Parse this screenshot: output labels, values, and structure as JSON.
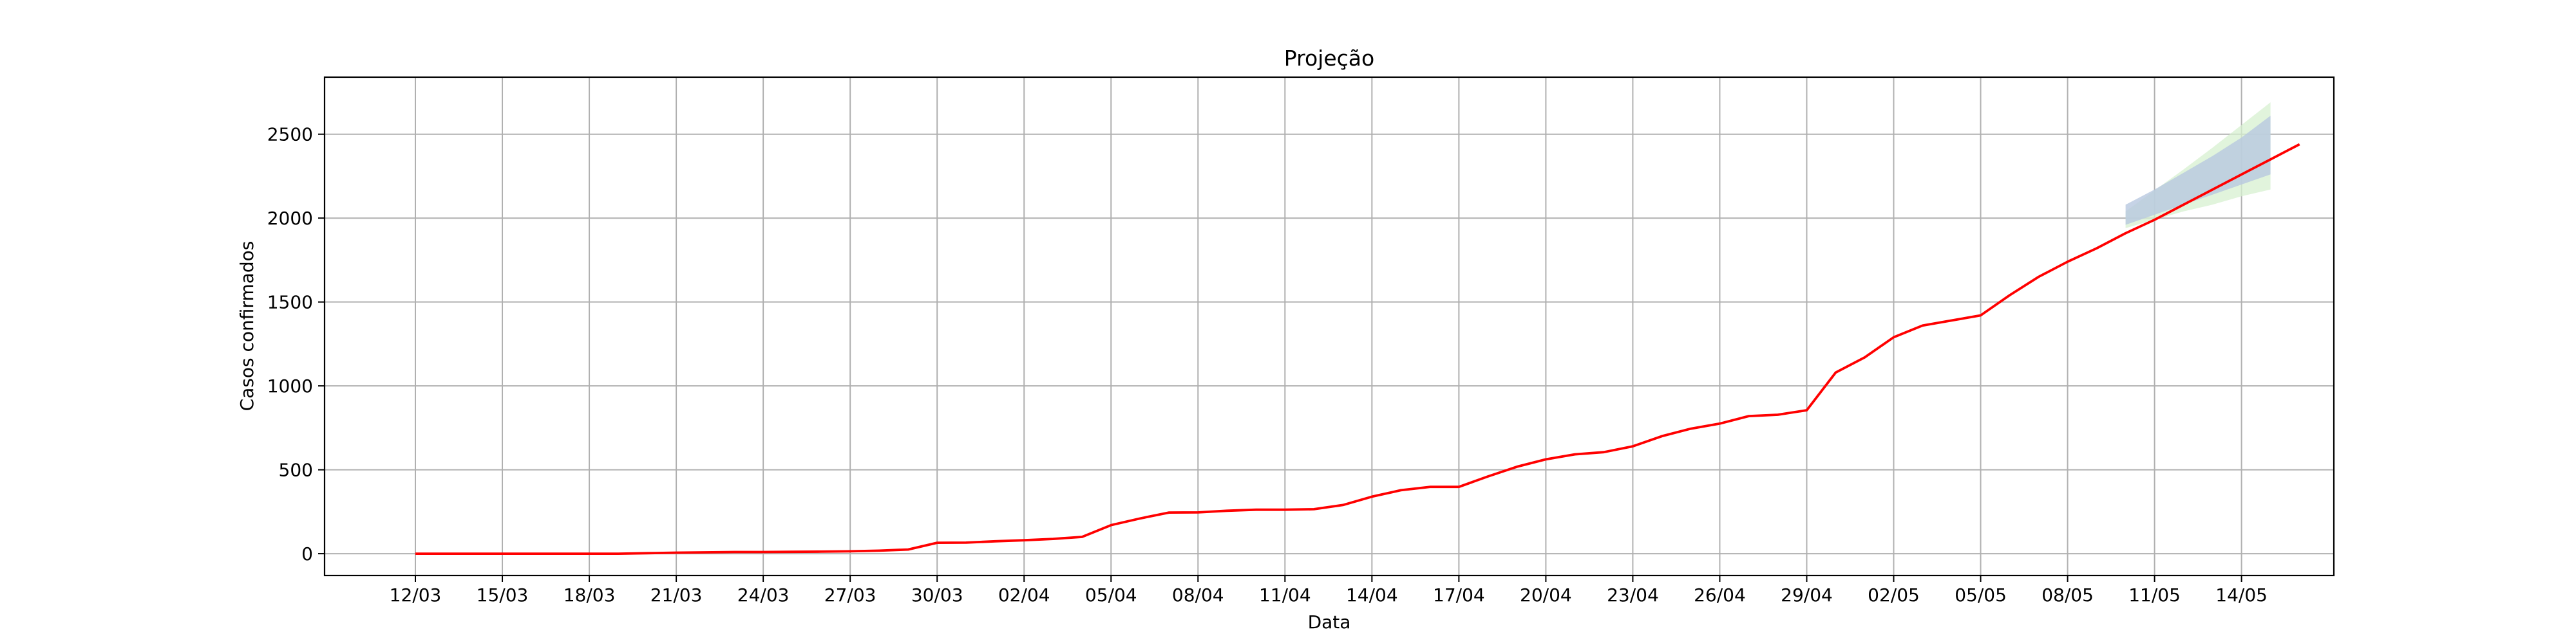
{
  "chart_data": {
    "type": "line",
    "title": "Projeção",
    "xlabel": "Data",
    "ylabel": "Casos confirmados",
    "grid": true,
    "x_start": "12/03",
    "x_tick_labels": [
      "12/03",
      "15/03",
      "18/03",
      "21/03",
      "24/03",
      "27/03",
      "30/03",
      "02/04",
      "05/04",
      "08/04",
      "11/04",
      "14/04",
      "17/04",
      "20/04",
      "23/04",
      "26/04",
      "29/04",
      "02/05",
      "05/05",
      "08/05",
      "11/05",
      "14/05"
    ],
    "ylim": [
      -130,
      2840
    ],
    "y_ticks": [
      0,
      500,
      1000,
      1500,
      2000,
      2500
    ],
    "series": [
      {
        "color": "#ff0000",
        "values": [
          0,
          0,
          0,
          0,
          0,
          0,
          0,
          0,
          3,
          6,
          8,
          10,
          10,
          11,
          12,
          14,
          18,
          25,
          65,
          66,
          74,
          80,
          88,
          100,
          170,
          210,
          245,
          246,
          256,
          262,
          262,
          265,
          290,
          340,
          378,
          398,
          398,
          460,
          518,
          562,
          592,
          605,
          640,
          700,
          745,
          775,
          820,
          828,
          855,
          1080,
          1170,
          1290,
          1360,
          1390,
          1420,
          1540,
          1650,
          1740,
          1820,
          1910,
          1990,
          2080,
          2170,
          2260,
          2350,
          2440
        ]
      }
    ],
    "projection": {
      "start_index": 59,
      "end_index": 65,
      "upper_90": [
        2040,
        2165,
        2290,
        2420,
        2555,
        2690
      ],
      "lower_90": [
        1940,
        1990,
        2040,
        2080,
        2130,
        2170
      ],
      "upper_80": [
        2080,
        2170,
        2270,
        2370,
        2480,
        2610
      ],
      "lower_80": [
        1960,
        2020,
        2080,
        2140,
        2200,
        2260
      ],
      "outer_color": "#d7f0d0",
      "inner_color": "#b8c8e0"
    }
  }
}
